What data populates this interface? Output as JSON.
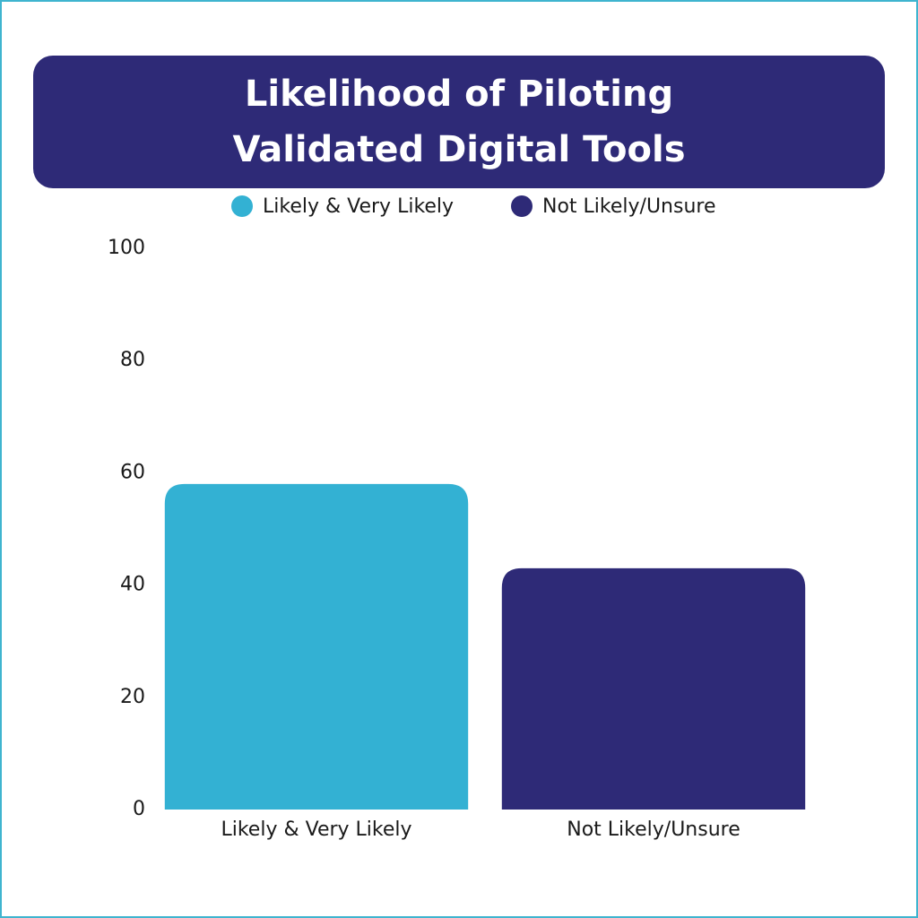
{
  "chart_data": {
    "type": "bar",
    "title": "Likelihood of Piloting Validated Digital Tools",
    "categories": [
      "Likely & Very Likely",
      "Not Likely/Unsure"
    ],
    "values": [
      58,
      43
    ],
    "colors": [
      "#33b1d3",
      "#2e2a77"
    ],
    "ylim": [
      0,
      100
    ],
    "yticks": [
      0,
      20,
      40,
      60,
      80,
      100
    ],
    "grid": false
  }
}
